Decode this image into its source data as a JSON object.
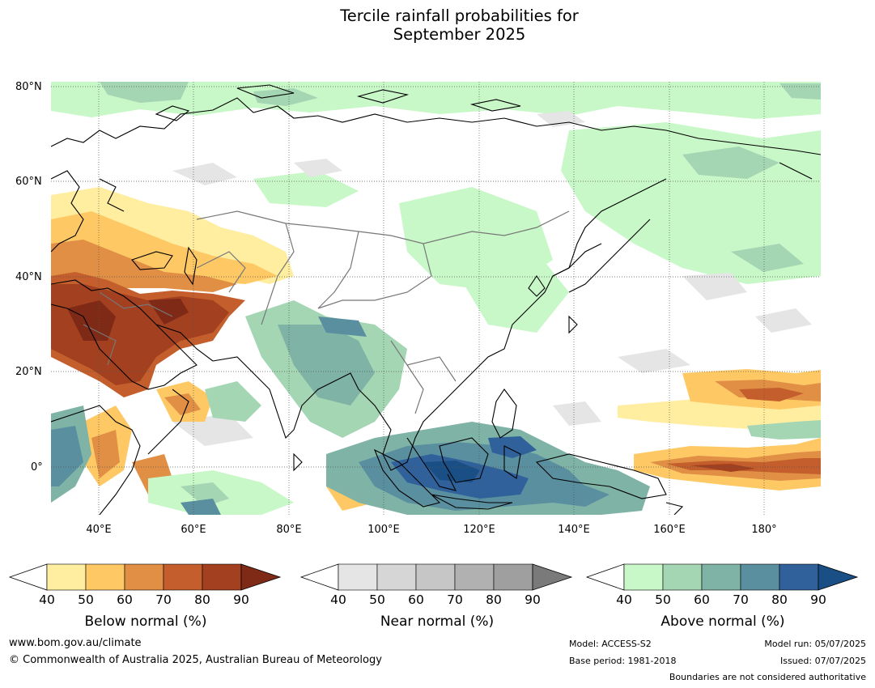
{
  "title": {
    "line1": "Tercile rainfall probabilities for",
    "line2": "September 2025"
  },
  "map": {
    "lat_labels": [
      "80°N",
      "60°N",
      "40°N",
      "20°N",
      "0°"
    ],
    "lon_labels": [
      "40°E",
      "60°E",
      "80°E",
      "100°E",
      "120°E",
      "140°E",
      "160°E",
      "180°"
    ],
    "lon_range": [
      30,
      192
    ],
    "lat_range": [
      -10,
      81
    ],
    "gridlines": "dotted"
  },
  "legends": [
    {
      "id": "below",
      "title": "Below normal (%)",
      "ticks": [
        "40",
        "50",
        "60",
        "70",
        "80",
        "90"
      ],
      "colors": [
        "#ffeda0",
        "#fec965",
        "#e08f45",
        "#c45f2d",
        "#a2401f",
        "#7f2a17"
      ]
    },
    {
      "id": "near",
      "title": "Near normal (%)",
      "ticks": [
        "40",
        "50",
        "60",
        "70",
        "80",
        "90"
      ],
      "colors": [
        "#e5e5e5",
        "#d6d6d6",
        "#c6c6c6",
        "#b1b1b1",
        "#9f9f9f",
        "#7a7a7a"
      ]
    },
    {
      "id": "above",
      "title": "Above normal (%)",
      "ticks": [
        "40",
        "50",
        "60",
        "70",
        "80",
        "90"
      ],
      "colors": [
        "#c8f7c8",
        "#a5d6b4",
        "#7eb3a6",
        "#5a8fa0",
        "#30619a",
        "#1a4f85"
      ]
    }
  ],
  "footer": {
    "website": "www.bom.gov.au/climate",
    "copyright": "© Commonwealth of Australia 2025, Australian Bureau of Meteorology",
    "model": "Model: ACCESS-S2",
    "base_period": "Base period: 1981-2018",
    "model_run": "Model run: 05/07/2025",
    "issued": "Issued: 07/07/2025",
    "disclaimer": "Boundaries are not considered authoritative"
  }
}
